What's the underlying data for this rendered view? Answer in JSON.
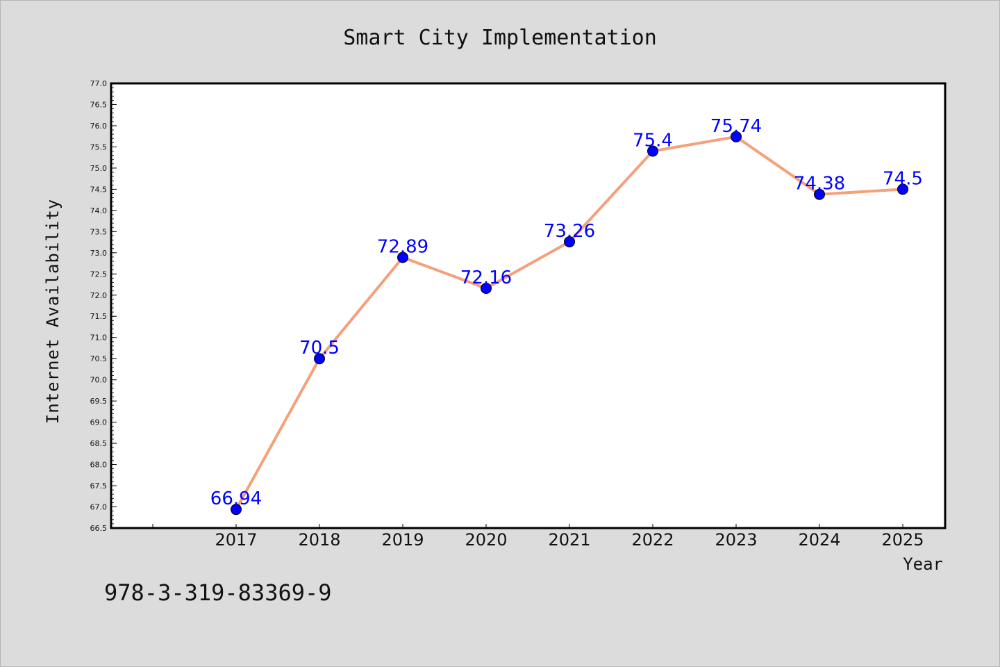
{
  "chart_data": {
    "type": "line",
    "title": "Smart City Implementation",
    "xlabel": "Year",
    "ylabel": "Internet Availability",
    "categories": [
      "2017",
      "2018",
      "2019",
      "2020",
      "2021",
      "2022",
      "2023",
      "2024",
      "2025"
    ],
    "series": [
      {
        "values": [
          66.94,
          70.5,
          72.89,
          72.16,
          73.26,
          75.4,
          75.74,
          74.38,
          74.5
        ],
        "data_labels": [
          "66.94",
          "70.5",
          "72.89",
          "72.16",
          "73.26",
          "75.4",
          "75.74",
          "74.38",
          "74.5"
        ]
      }
    ],
    "ylim": [
      66.5,
      77.0
    ],
    "yticks": [
      "66.5",
      "67.0",
      "67.5",
      "68.0",
      "68.5",
      "69.0",
      "69.5",
      "70.0",
      "70.5",
      "71.0",
      "71.5",
      "72.0",
      "72.5",
      "73.0",
      "73.5",
      "74.0",
      "74.5",
      "75.0",
      "75.5",
      "76.0",
      "76.5",
      "77.0"
    ],
    "grid": false,
    "line_color": "#f4a07a",
    "marker_color": "#0000ff",
    "label_color": "#0000ff"
  },
  "footnote": "978-3-319-83369-9"
}
